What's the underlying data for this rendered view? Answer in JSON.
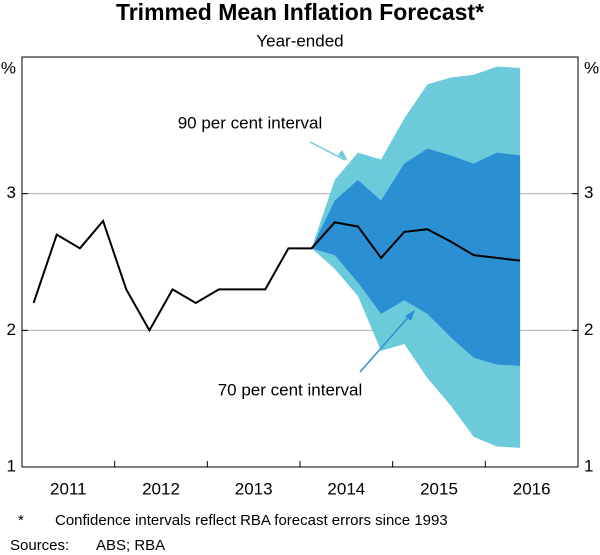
{
  "chart_data": {
    "type": "fan",
    "title": "Trimmed Mean Inflation Forecast*",
    "subtitle": "Year-ended",
    "footnote": {
      "marker": "*",
      "text": "Confidence intervals reflect RBA forecast errors since 1993"
    },
    "sources": {
      "label": "Sources:",
      "text": "ABS; RBA"
    },
    "x": [
      2011.125,
      2011.375,
      2011.625,
      2011.875,
      2012.125,
      2012.375,
      2012.625,
      2012.875,
      2013.125,
      2013.375,
      2013.625,
      2013.875,
      2014.125,
      2014.375,
      2014.625,
      2014.875,
      2015.125,
      2015.375,
      2015.625,
      2015.875,
      2016.125,
      2016.375
    ],
    "xlim": [
      2011,
      2017
    ],
    "xticks": [
      {
        "value": 2011.5,
        "label": "2011"
      },
      {
        "value": 2012.5,
        "label": "2012"
      },
      {
        "value": 2013.5,
        "label": "2013"
      },
      {
        "value": 2014.5,
        "label": "2014"
      },
      {
        "value": 2015.5,
        "label": "2015"
      },
      {
        "value": 2016.5,
        "label": "2016"
      }
    ],
    "ylim": [
      1,
      4
    ],
    "yticks": [
      1,
      2,
      3,
      {
        "value": 4,
        "label": "%"
      }
    ],
    "grid": true,
    "series": [
      {
        "name": "90 per cent interval",
        "color": "#6ccbdb",
        "lower": [
          null,
          null,
          null,
          null,
          null,
          null,
          null,
          null,
          null,
          null,
          null,
          null,
          2.6,
          2.45,
          2.25,
          1.85,
          1.9,
          1.65,
          1.45,
          1.22,
          1.15,
          1.14
        ],
        "upper": [
          null,
          null,
          null,
          null,
          null,
          null,
          null,
          null,
          null,
          null,
          null,
          null,
          2.6,
          3.1,
          3.3,
          3.25,
          3.55,
          3.8,
          3.85,
          3.87,
          3.93,
          3.92
        ]
      },
      {
        "name": "70 per cent interval",
        "color": "#2b8fd4",
        "lower": [
          null,
          null,
          null,
          null,
          null,
          null,
          null,
          null,
          null,
          null,
          null,
          null,
          2.6,
          2.55,
          2.35,
          2.12,
          2.22,
          2.12,
          1.95,
          1.8,
          1.75,
          1.74
        ],
        "upper": [
          null,
          null,
          null,
          null,
          null,
          null,
          null,
          null,
          null,
          null,
          null,
          null,
          2.6,
          2.95,
          3.1,
          2.95,
          3.22,
          3.33,
          3.28,
          3.22,
          3.3,
          3.28
        ]
      },
      {
        "color": "#000000",
        "values": [
          2.2,
          2.7,
          2.6,
          2.8,
          2.3,
          2.0,
          2.3,
          2.2,
          2.3,
          2.3,
          2.3,
          2.6,
          2.6,
          2.79,
          2.76,
          2.53,
          2.72,
          2.74,
          2.65,
          2.55,
          2.53,
          2.51
        ]
      }
    ]
  }
}
